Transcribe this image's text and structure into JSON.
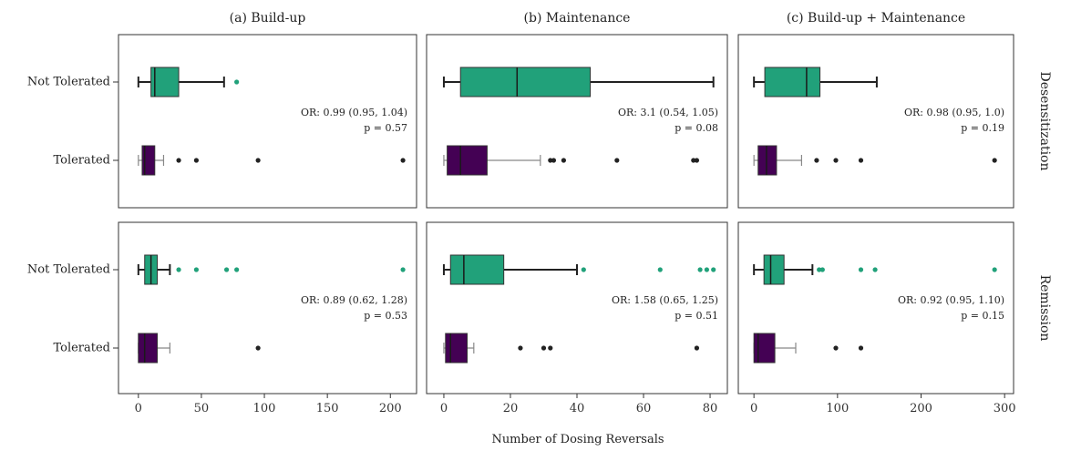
{
  "chart_data": {
    "type": "boxplot",
    "xlabel": "Number of Dosing Reversals",
    "categories": [
      "Not Tolerated",
      "Tolerated"
    ],
    "colors": {
      "Not Tolerated": "#21a17a",
      "Tolerated": "#440154"
    },
    "columns": [
      {
        "key": "buildup",
        "title": "(a) Build-up",
        "xlim": [
          -10,
          215
        ],
        "ticks": [
          0,
          50,
          100,
          150,
          200
        ]
      },
      {
        "key": "maintenance",
        "title": "(b) Maintenance",
        "xlim": [
          -3,
          83
        ],
        "ticks": [
          0,
          20,
          40,
          60,
          80
        ]
      },
      {
        "key": "combined",
        "title": "(c) Build-up + Maintenance",
        "xlim": [
          -10,
          302
        ],
        "ticks": [
          0,
          100,
          200,
          300
        ]
      }
    ],
    "rows": [
      {
        "key": "desensitization",
        "label": "Desensitization"
      },
      {
        "key": "remission",
        "label": "Remission"
      }
    ],
    "panels": [
      {
        "row": "desensitization",
        "col": "buildup",
        "annotation": [
          "OR: 0.99 (0.95, 1.04)",
          "p = 0.57"
        ],
        "groups": [
          {
            "category": "Not Tolerated",
            "whisker_low": 0,
            "q1": 10,
            "median": 13,
            "q3": 32,
            "whisker_high": 68,
            "outliers": [
              78
            ]
          },
          {
            "category": "Tolerated",
            "whisker_low": 0,
            "q1": 3,
            "median": 5,
            "q3": 13,
            "whisker_high": 20,
            "outliers": [
              32,
              46,
              95,
              210
            ]
          }
        ]
      },
      {
        "row": "desensitization",
        "col": "maintenance",
        "annotation": [
          "OR: 3.1 (0.54, 1.05)",
          "p = 0.08"
        ],
        "groups": [
          {
            "category": "Not Tolerated",
            "whisker_low": 0,
            "q1": 5,
            "median": 22,
            "q3": 44,
            "whisker_high": 81,
            "outliers": []
          },
          {
            "category": "Tolerated",
            "whisker_low": 0,
            "q1": 1,
            "median": 5,
            "q3": 13,
            "whisker_high": 29,
            "outliers": [
              32,
              33,
              36,
              52,
              75,
              76
            ]
          }
        ]
      },
      {
        "row": "desensitization",
        "col": "combined",
        "annotation": [
          "OR: 0.98 (0.95, 1.0)",
          "p = 0.19"
        ],
        "groups": [
          {
            "category": "Not Tolerated",
            "whisker_low": 0,
            "q1": 13,
            "median": 63,
            "q3": 79,
            "whisker_high": 147,
            "outliers": []
          },
          {
            "category": "Tolerated",
            "whisker_low": 0,
            "q1": 5,
            "median": 15,
            "q3": 27,
            "whisker_high": 57,
            "outliers": [
              75,
              98,
              128,
              288
            ]
          }
        ]
      },
      {
        "row": "remission",
        "col": "buildup",
        "annotation": [
          "OR: 0.89 (0.62, 1.28)",
          "p = 0.53"
        ],
        "groups": [
          {
            "category": "Not Tolerated",
            "whisker_low": 0,
            "q1": 5,
            "median": 10,
            "q3": 15,
            "whisker_high": 25,
            "outliers": [
              32,
              46,
              70,
              78,
              210
            ]
          },
          {
            "category": "Tolerated",
            "whisker_low": 0,
            "q1": 0,
            "median": 5,
            "q3": 15,
            "whisker_high": 25,
            "outliers": [
              95
            ]
          }
        ]
      },
      {
        "row": "remission",
        "col": "maintenance",
        "annotation": [
          "OR: 1.58 (0.65, 1.25)",
          "p = 0.51"
        ],
        "groups": [
          {
            "category": "Not Tolerated",
            "whisker_low": 0,
            "q1": 2,
            "median": 6,
            "q3": 18,
            "whisker_high": 40,
            "outliers": [
              42,
              65,
              77,
              79,
              81
            ]
          },
          {
            "category": "Tolerated",
            "whisker_low": 0,
            "q1": 0.5,
            "median": 2,
            "q3": 7,
            "whisker_high": 9,
            "outliers": [
              23,
              30,
              32,
              76
            ]
          }
        ]
      },
      {
        "row": "remission",
        "col": "combined",
        "annotation": [
          "OR: 0.92 (0.95, 1.10)",
          "p = 0.15"
        ],
        "groups": [
          {
            "category": "Not Tolerated",
            "whisker_low": 0,
            "q1": 12,
            "median": 20,
            "q3": 36,
            "whisker_high": 70,
            "outliers": [
              78,
              82,
              128,
              145,
              288
            ]
          },
          {
            "category": "Tolerated",
            "whisker_low": 0,
            "q1": 0,
            "median": 5,
            "q3": 25,
            "whisker_high": 50,
            "outliers": [
              98,
              128
            ]
          }
        ]
      }
    ]
  }
}
